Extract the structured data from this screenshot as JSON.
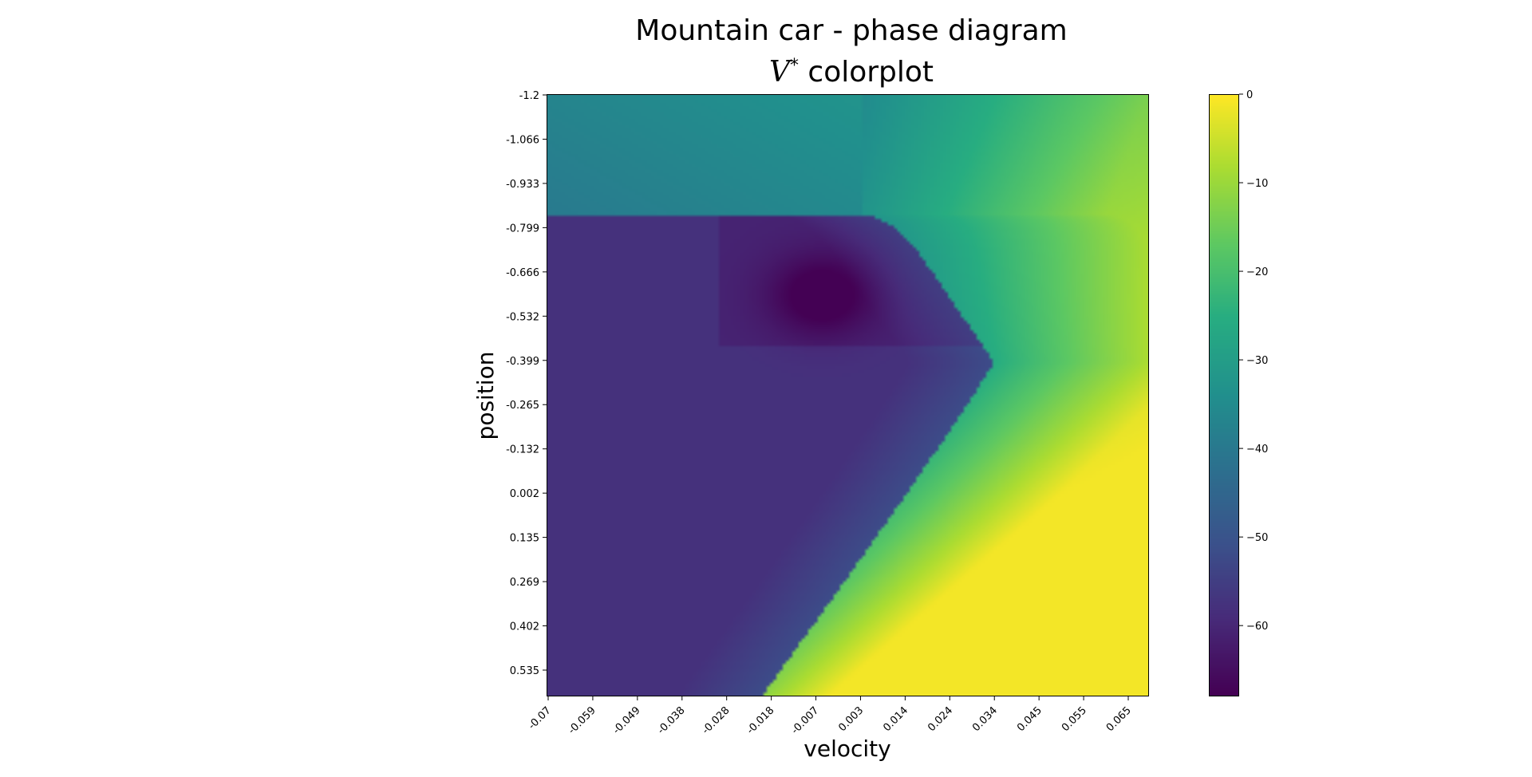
{
  "chart_data": {
    "type": "heatmap",
    "title": "Mountain car - phase diagram",
    "subtitle_symbol": "V",
    "subtitle_superscript": "*",
    "subtitle_text": "colorplot",
    "xlabel": "velocity",
    "ylabel": "position",
    "x_ticks": [
      "-0.07",
      "-0.059",
      "-0.049",
      "-0.038",
      "-0.028",
      "-0.018",
      "-0.007",
      "0.003",
      "0.014",
      "0.024",
      "0.034",
      "0.045",
      "0.055",
      "0.065"
    ],
    "y_ticks": [
      "-1.2",
      "-1.066",
      "-0.933",
      "-0.799",
      "-0.666",
      "-0.532",
      "-0.399",
      "-0.265",
      "-0.132",
      "0.002",
      "0.135",
      "0.269",
      "0.402",
      "0.535"
    ],
    "xlim": [
      -0.07,
      0.07
    ],
    "ylim": [
      -1.2,
      0.6
    ],
    "y_axis_inverted": true,
    "colormap": "viridis",
    "colorbar": {
      "vmin": -68,
      "vmax": 0,
      "ticks": [
        "0",
        "−10",
        "−20",
        "−30",
        "−40",
        "−50",
        "−60"
      ],
      "tick_values": [
        0,
        -10,
        -20,
        -30,
        -40,
        -50,
        -60
      ]
    },
    "value_description": "optimal value V* over (velocity, position); goal region near position 0.5 with positive velocity has value near 0, a spiral basin around velocity 0 and position -0.55 has the lowest values near -68"
  }
}
